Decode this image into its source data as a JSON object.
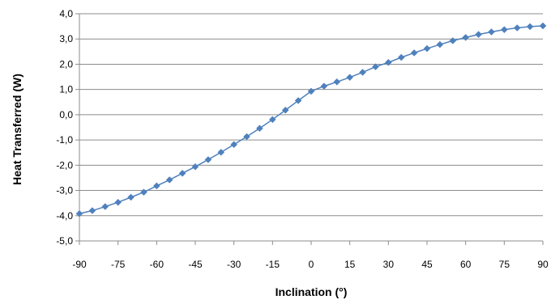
{
  "chart_data": {
    "type": "line",
    "title": "",
    "xlabel": "Inclination (°)",
    "ylabel": "Heat Transferred (W)",
    "xlim": [
      -90,
      90
    ],
    "ylim": [
      -5,
      4
    ],
    "x_ticks": [
      -90,
      -75,
      -60,
      -45,
      -30,
      -15,
      0,
      15,
      30,
      45,
      60,
      75,
      90
    ],
    "x_tick_labels": [
      "-90",
      "-75",
      "-60",
      "-45",
      "-30",
      "-15",
      "0",
      "15",
      "30",
      "45",
      "60",
      "75",
      "90"
    ],
    "y_ticks": [
      -5,
      -4,
      -3,
      -2,
      -1,
      0,
      1,
      2,
      3,
      4
    ],
    "y_tick_labels": [
      "-5,0",
      "-4,0",
      "-3,0",
      "-2,0",
      "-1,0",
      "0,0",
      "1,0",
      "2,0",
      "3,0",
      "4,0"
    ],
    "grid": "horizontal",
    "legend": "none",
    "series_color": "#4F81BD",
    "x": [
      -90,
      -85,
      -80,
      -75,
      -70,
      -65,
      -60,
      -55,
      -50,
      -45,
      -40,
      -35,
      -30,
      -25,
      -20,
      -15,
      -10,
      -5,
      0,
      5,
      10,
      15,
      20,
      25,
      30,
      35,
      40,
      45,
      50,
      55,
      60,
      65,
      70,
      75,
      80,
      85,
      90
    ],
    "series": [
      {
        "values": [
          -3.92,
          -3.8,
          -3.64,
          -3.47,
          -3.27,
          -3.07,
          -2.82,
          -2.58,
          -2.32,
          -2.06,
          -1.78,
          -1.49,
          -1.18,
          -0.87,
          -0.54,
          -0.19,
          0.18,
          0.56,
          0.93,
          1.13,
          1.3,
          1.48,
          1.68,
          1.9,
          2.07,
          2.27,
          2.45,
          2.62,
          2.78,
          2.93,
          3.06,
          3.18,
          3.28,
          3.37,
          3.44,
          3.49,
          3.52
        ]
      }
    ]
  }
}
